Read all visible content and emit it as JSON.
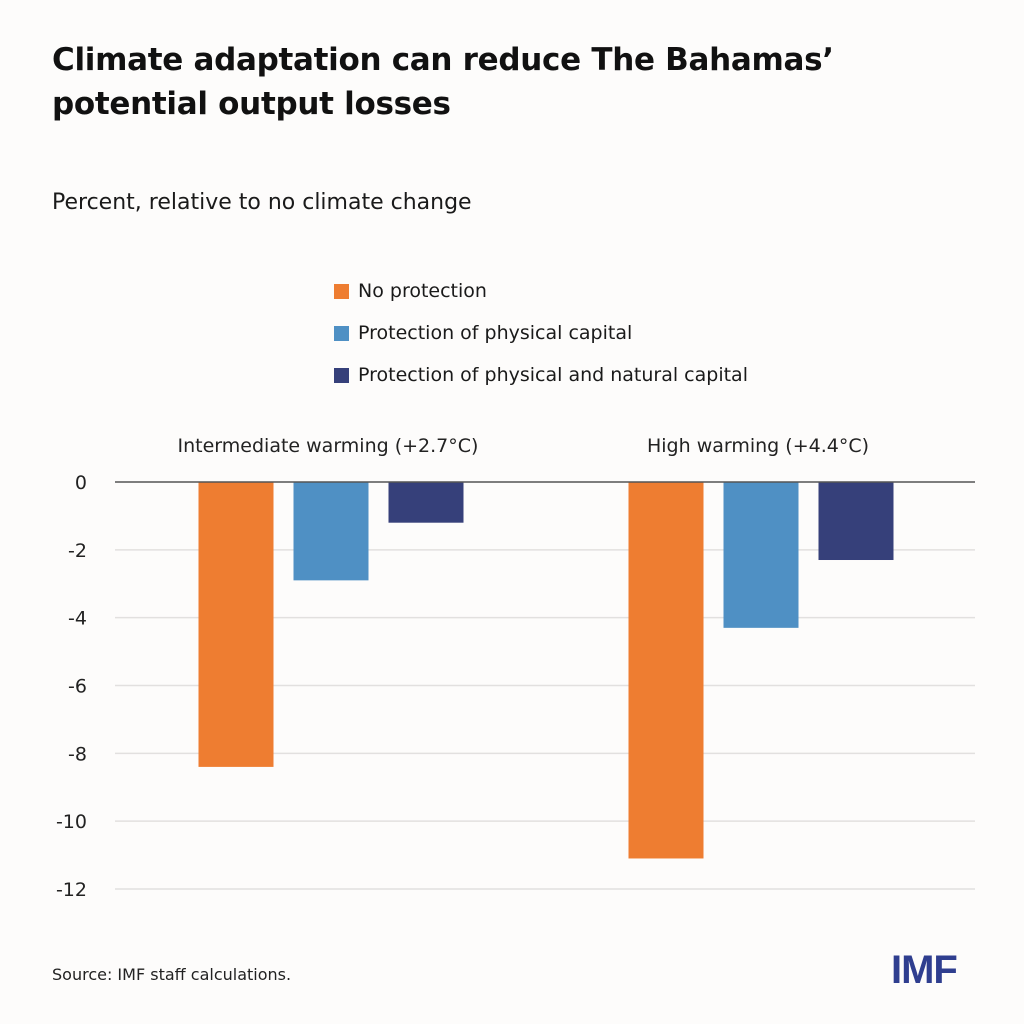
{
  "header": {
    "title": "Climate adaptation can reduce The Bahamas’ potential output losses",
    "subtitle": "Percent, relative to no climate change"
  },
  "footer": {
    "source": "Source: IMF staff calculations.",
    "logo": "IMF"
  },
  "chart_data": {
    "type": "bar",
    "title": "Climate adaptation can reduce The Bahamas’ potential output losses",
    "subtitle": "Percent, relative to no climate change",
    "xlabel": "",
    "ylabel": "Percent, relative to no climate change",
    "categories": [
      "Intermediate warming (+2.7°C)",
      "High warming (+4.4°C)"
    ],
    "series": [
      {
        "name": "No protection",
        "color": "#ee7d31",
        "values": [
          -8.4,
          -11.1
        ]
      },
      {
        "name": "Protection of physical capital",
        "color": "#4f90c4",
        "values": [
          -2.9,
          -4.3
        ]
      },
      {
        "name": "Protection of physical and natural capital",
        "color": "#36407a",
        "values": [
          -1.2,
          -2.3
        ]
      }
    ],
    "ylim": [
      -12,
      0
    ],
    "yticks": [
      0,
      -2,
      -4,
      -6,
      -8,
      -10,
      -12
    ],
    "ytick_labels": [
      "0",
      "-2",
      "-4",
      "-6",
      "-8",
      "-10",
      "-12"
    ],
    "grid": true,
    "legend_position": "top-center",
    "category_label_position": "top"
  }
}
